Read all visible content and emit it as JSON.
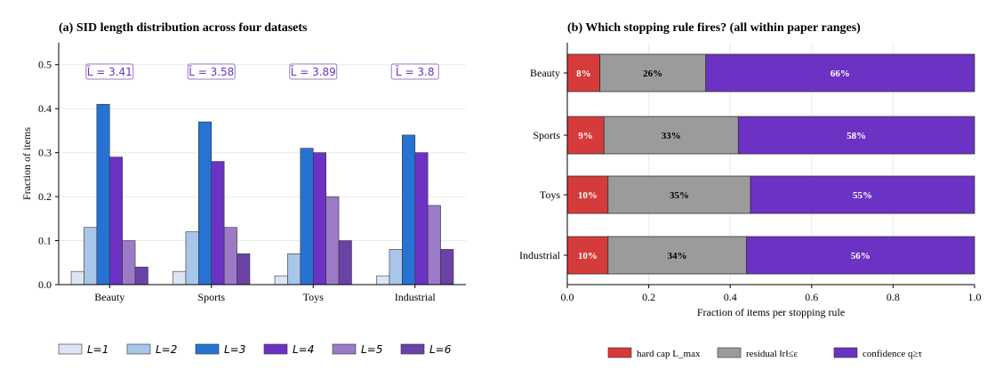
{
  "chart_data": [
    {
      "type": "bar",
      "title": "(a) SID length distribution across four datasets",
      "ylabel": "Fraction of items",
      "xlabel": "",
      "ylim": [
        0,
        0.55
      ],
      "yticks": [
        "0.0",
        "0.1",
        "0.2",
        "0.3",
        "0.4",
        "0.5"
      ],
      "grid": "y",
      "categories": [
        "Beauty",
        "Sports",
        "Toys",
        "Industrial"
      ],
      "series": [
        {
          "name": "L=1",
          "color": "#dce6f2",
          "values": [
            0.03,
            0.03,
            0.02,
            0.02
          ]
        },
        {
          "name": "L=2",
          "color": "#a8c6e8",
          "values": [
            0.13,
            0.12,
            0.07,
            0.08
          ]
        },
        {
          "name": "L=3",
          "color": "#2673d4",
          "values": [
            0.41,
            0.37,
            0.31,
            0.34
          ]
        },
        {
          "name": "L=4",
          "color": "#6c32c4",
          "values": [
            0.29,
            0.28,
            0.3,
            0.3
          ]
        },
        {
          "name": "L=5",
          "color": "#9b7bc8",
          "values": [
            0.1,
            0.13,
            0.2,
            0.18
          ]
        },
        {
          "name": "L=6",
          "color": "#6b42a5",
          "values": [
            0.04,
            0.07,
            0.1,
            0.08
          ]
        }
      ],
      "annotations": [
        "L̄ = 3.41",
        "L̄ = 3.58",
        "L̄ = 3.89",
        "L̄ = 3.8"
      ],
      "legend": "bottom"
    },
    {
      "type": "bar",
      "orientation": "horizontal-stacked",
      "title": "(b) Which stopping rule fires? (all within paper ranges)",
      "xlabel": "Fraction of items per stopping rule",
      "ylabel": "",
      "xlim": [
        0,
        1.0
      ],
      "xticks": [
        "0.0",
        "0.2",
        "0.4",
        "0.6",
        "0.8",
        "1.0"
      ],
      "grid": "x",
      "categories": [
        "Beauty",
        "Sports",
        "Toys",
        "Industrial"
      ],
      "series": [
        {
          "name": "hard cap L_max",
          "color": "#d63b3b",
          "values": [
            0.08,
            0.09,
            0.1,
            0.1
          ],
          "labels": [
            "8%",
            "9%",
            "10%",
            "10%"
          ]
        },
        {
          "name": "residual ‖r‖≤ε",
          "color": "#9b9b9b",
          "values": [
            0.26,
            0.33,
            0.35,
            0.34
          ],
          "labels": [
            "26%",
            "33%",
            "35%",
            "34%"
          ]
        },
        {
          "name": "confidence q≥τ",
          "color": "#6c32c4",
          "values": [
            0.66,
            0.58,
            0.55,
            0.56
          ],
          "labels": [
            "66%",
            "58%",
            "55%",
            "56%"
          ]
        }
      ],
      "legend": "bottom"
    }
  ]
}
